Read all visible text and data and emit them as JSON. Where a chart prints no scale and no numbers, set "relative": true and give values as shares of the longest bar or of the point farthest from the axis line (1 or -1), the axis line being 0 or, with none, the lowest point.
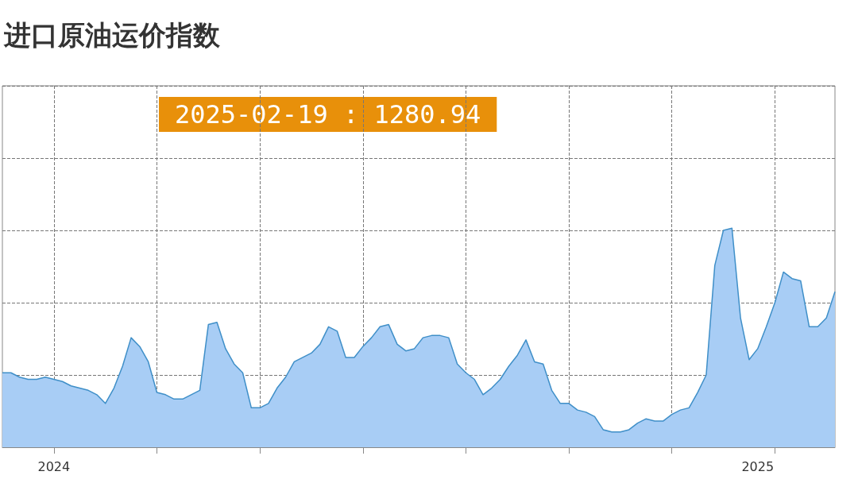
{
  "chart_data": {
    "type": "area",
    "title": "进口原油运价指数",
    "relative": true,
    "grid": true,
    "annotations": [
      "2025-02-19 : 1280.94"
    ],
    "categories": [
      null,
      null,
      null,
      null,
      null,
      null,
      "2024",
      null,
      null,
      null,
      null,
      null,
      null,
      null,
      null,
      null,
      null,
      null,
      null,
      null,
      null,
      null,
      null,
      null,
      null,
      null,
      null,
      null,
      null,
      null,
      null,
      null,
      null,
      null,
      null,
      null,
      null,
      null,
      null,
      null,
      null,
      null,
      null,
      null,
      null,
      null,
      null,
      null,
      null,
      null,
      null,
      null,
      null,
      null,
      null,
      null,
      null,
      null,
      null,
      null,
      null,
      null,
      null,
      null,
      null,
      null,
      null,
      null,
      null,
      null,
      null,
      null,
      null,
      null,
      null,
      null,
      null,
      null,
      null,
      null,
      null,
      null,
      null,
      null,
      null,
      null,
      null,
      null,
      "2025",
      null,
      null,
      null,
      null,
      null,
      null,
      null,
      null,
      null
    ],
    "series": [
      {
        "color": "#3f8fc8",
        "values": [
          0.34,
          0.34,
          0.32,
          0.31,
          0.31,
          0.32,
          0.31,
          0.3,
          0.28,
          0.27,
          0.26,
          0.24,
          0.2,
          0.27,
          0.37,
          0.5,
          0.46,
          0.39,
          0.25,
          0.24,
          0.22,
          0.22,
          0.24,
          0.26,
          0.56,
          0.57,
          0.45,
          0.38,
          0.34,
          0.18,
          0.18,
          0.2,
          0.27,
          0.32,
          0.39,
          0.41,
          0.43,
          0.47,
          0.55,
          0.53,
          0.41,
          0.41,
          0.46,
          0.5,
          0.55,
          0.56,
          0.47,
          0.44,
          0.45,
          0.5,
          0.51,
          0.51,
          0.5,
          0.38,
          0.34,
          0.31,
          0.24,
          0.27,
          0.31,
          0.37,
          0.42,
          0.49,
          0.39,
          0.38,
          0.26,
          0.2,
          0.2,
          0.17,
          0.16,
          0.14,
          0.08,
          0.07,
          0.07,
          0.08,
          0.11,
          0.13,
          0.12,
          0.12,
          0.15,
          0.17,
          0.18,
          0.25,
          0.33,
          0.83,
          0.99,
          1,
          0.59,
          0.4,
          0.45,
          0.55,
          0.66,
          0.8,
          0.77,
          0.76,
          0.55,
          0.55,
          0.59,
          0.71
        ]
      }
    ]
  }
}
